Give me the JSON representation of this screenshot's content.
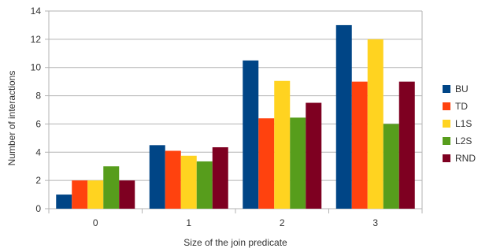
{
  "chart_data": {
    "type": "bar",
    "xlabel": "Size of the join predicate",
    "ylabel": "Number of interactions",
    "categories": [
      "0",
      "1",
      "2",
      "3"
    ],
    "ylim": [
      0,
      14
    ],
    "yticks": [
      0,
      2,
      4,
      6,
      8,
      10,
      12,
      14
    ],
    "grid": "horizontal",
    "legend_position": "right",
    "series": [
      {
        "name": "BU",
        "color": "#004586",
        "values": [
          1,
          4.5,
          10.5,
          13
        ]
      },
      {
        "name": "TD",
        "color": "#ff420e",
        "values": [
          2,
          4.1,
          6.4,
          9
        ]
      },
      {
        "name": "L1S",
        "color": "#ffd320",
        "values": [
          2,
          3.75,
          9.05,
          12
        ]
      },
      {
        "name": "L2S",
        "color": "#579d1c",
        "values": [
          3,
          3.35,
          6.45,
          6
        ]
      },
      {
        "name": "RND",
        "color": "#7e0021",
        "values": [
          2,
          4.35,
          7.5,
          9
        ]
      }
    ]
  }
}
